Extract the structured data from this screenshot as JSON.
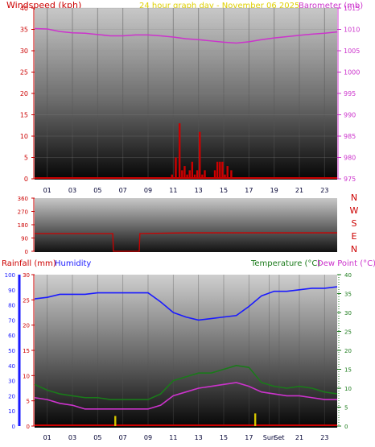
{
  "header": {
    "windspeed_label": "Windspeed (kph)",
    "title": "24 hour graph day - November 06 2025",
    "barometer_label": "Barometer (mb)"
  },
  "colors": {
    "red": "#cc0000",
    "pressure": "#cc33cc",
    "humidity": "#1a1aff",
    "temperature": "#1a7a1a",
    "dewpoint": "#cc33cc",
    "title": "#e0d000",
    "rain_bar": "#d4c400"
  },
  "x_ticks": [
    "01",
    "03",
    "05",
    "07",
    "09",
    "11",
    "13",
    "15",
    "17",
    "19",
    "21",
    "23"
  ],
  "panel3_x_ticks": [
    "01",
    "03",
    "05",
    "07",
    "09",
    "11",
    "13",
    "15",
    "17",
    "Sun",
    "Set",
    "21",
    "23"
  ],
  "chart_data": [
    {
      "type": "line",
      "name_key": "wind_baro",
      "x_range": [
        0,
        24
      ],
      "wind_axis": {
        "label": "Windspeed (kph)",
        "ylim": [
          0,
          40
        ],
        "ticks": [
          0,
          5,
          10,
          15,
          20,
          25,
          30,
          35,
          40
        ]
      },
      "baro_axis": {
        "label": "Barometer (mb)",
        "ylim": [
          975,
          1015
        ],
        "ticks": [
          975,
          980,
          985,
          990,
          995,
          1000,
          1005,
          1010,
          1015
        ]
      },
      "series": [
        {
          "name": "Barometer (mb)",
          "x": [
            0,
            1,
            2,
            3,
            4,
            5,
            6,
            7,
            8,
            9,
            10,
            11,
            12,
            13,
            14,
            15,
            16,
            17,
            18,
            19,
            20,
            21,
            22,
            23,
            24
          ],
          "values": [
            1010.2,
            1010.1,
            1009.5,
            1009.2,
            1009.1,
            1008.8,
            1008.5,
            1008.5,
            1008.7,
            1008.7,
            1008.5,
            1008.2,
            1007.8,
            1007.6,
            1007.3,
            1007.0,
            1006.8,
            1007.1,
            1007.6,
            1008.0,
            1008.3,
            1008.6,
            1008.9,
            1009.1,
            1009.4
          ]
        },
        {
          "name": "Windspeed (kph)",
          "type": "bar",
          "x": [
            10.9,
            11.2,
            11.5,
            11.7,
            11.9,
            12.1,
            12.3,
            12.5,
            12.7,
            12.9,
            13.1,
            13.3,
            13.5,
            14.3,
            14.5,
            14.7,
            14.9,
            15.1,
            15.3,
            15.6
          ],
          "values": [
            1,
            5,
            13,
            2,
            3,
            1,
            2,
            4,
            1,
            2,
            11,
            1,
            2,
            2,
            4,
            4,
            4,
            1,
            3,
            2
          ]
        }
      ]
    },
    {
      "type": "line",
      "name_key": "wind_direction",
      "x_range": [
        0,
        24
      ],
      "axis": {
        "ylim": [
          0,
          360
        ],
        "ticks": [
          0,
          90,
          180,
          270,
          360
        ]
      },
      "compass": [
        "N",
        "W",
        "S",
        "E",
        "N"
      ],
      "series": [
        {
          "name": "Wind direction",
          "x": [
            0,
            6.2,
            6.25,
            8.3,
            8.35,
            12,
            16,
            24
          ],
          "values": [
            120,
            120,
            0,
            0,
            120,
            125,
            125,
            125
          ]
        }
      ]
    },
    {
      "type": "line",
      "name_key": "rain_humidity_temp",
      "x_range": [
        0,
        24
      ],
      "humidity_axis": {
        "label": "Humidity",
        "ylim": [
          0,
          100
        ],
        "ticks": [
          0,
          10,
          20,
          30,
          40,
          50,
          60,
          70,
          80,
          90,
          100
        ]
      },
      "rain_axis": {
        "label": "Rainfall (mm)",
        "ylim": [
          0,
          30
        ],
        "ticks": [
          0,
          5,
          10,
          15,
          20,
          25,
          30
        ]
      },
      "temp_axis": {
        "label": "Temperature (°C)",
        "ylim": [
          0,
          40
        ],
        "ticks": [
          0,
          5,
          10,
          15,
          20,
          25,
          30,
          35,
          40
        ]
      },
      "dew_label": "Dew Point (°C)",
      "series": [
        {
          "name": "Humidity",
          "x": [
            0,
            1,
            2,
            3,
            4,
            5,
            6,
            7,
            8,
            9,
            10,
            11,
            12,
            13,
            14,
            15,
            16,
            17,
            18,
            19,
            20,
            21,
            22,
            23,
            24
          ],
          "values": [
            84,
            85,
            87,
            87,
            87,
            88,
            88,
            88,
            88,
            88,
            82,
            75,
            72,
            70,
            71,
            72,
            73,
            79,
            86,
            89,
            89,
            90,
            91,
            91,
            92
          ]
        },
        {
          "name": "Temperature (°C)",
          "x": [
            0,
            1,
            2,
            3,
            4,
            5,
            6,
            7,
            8,
            9,
            10,
            11,
            12,
            13,
            14,
            15,
            16,
            17,
            18,
            19,
            20,
            21,
            22,
            23,
            24
          ],
          "values": [
            11,
            9.5,
            8.5,
            8,
            7.5,
            7.5,
            7,
            7,
            7,
            7,
            8.5,
            12,
            13,
            14,
            14,
            15,
            16,
            15.5,
            11.5,
            10.5,
            10,
            10.5,
            10,
            9,
            8.5
          ]
        },
        {
          "name": "Dew Point (°C)",
          "x": [
            0,
            1,
            2,
            3,
            4,
            5,
            6,
            7,
            8,
            9,
            10,
            11,
            12,
            13,
            14,
            15,
            16,
            17,
            18,
            19,
            20,
            21,
            22,
            23,
            24
          ],
          "values": [
            7.5,
            7,
            6,
            5.5,
            4.5,
            4.5,
            4.5,
            4.5,
            4.5,
            4.5,
            5.5,
            8,
            9,
            10,
            10.5,
            11,
            11.5,
            10.5,
            9,
            8.5,
            8,
            8,
            7.5,
            7,
            7
          ]
        },
        {
          "name": "Rainfall (mm)",
          "type": "bar",
          "x": [
            6.4,
            17.5
          ],
          "values": [
            2,
            2.5
          ]
        }
      ],
      "labels": {
        "rainfall": "Rainfall (mm)",
        "humidity": "Humidity",
        "temperature": "Temperature (°C)",
        "dewpoint": "Dew Point (°C)"
      }
    }
  ]
}
